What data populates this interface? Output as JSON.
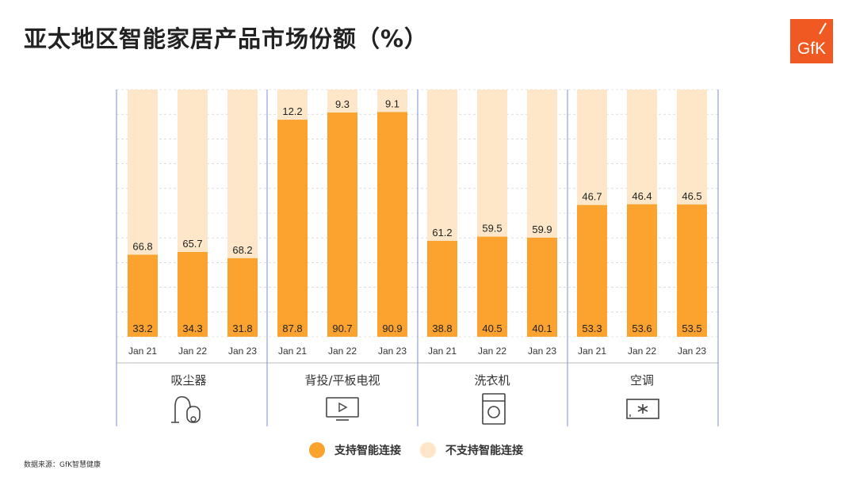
{
  "title": "亚太地区智能家居产品市场份额（%）",
  "logo_text": "GfK",
  "source": "数据来源：GfK智慧健康",
  "colors": {
    "supported": "#fba32e",
    "unsupported": "#fde7c8",
    "divider": "#7c8fd1",
    "gridline": "#c9c9c9"
  },
  "legend": [
    {
      "label": "支持智能连接",
      "color": "#fba32e"
    },
    {
      "label": "不支持智能连接",
      "color": "#fde7c8"
    }
  ],
  "groups": [
    {
      "name": "吸尘器",
      "icon": "vacuum-cleaner-icon"
    },
    {
      "name": "背投/平板电视",
      "icon": "tv-icon"
    },
    {
      "name": "洗衣机",
      "icon": "washing-machine-icon"
    },
    {
      "name": "空调",
      "icon": "air-conditioner-icon"
    }
  ],
  "chart_data": {
    "type": "bar",
    "stacked": true,
    "percent": true,
    "ylim": [
      0,
      100
    ],
    "grid": true,
    "legend_position": "bottom",
    "categories": [
      "Jan 21",
      "Jan 22",
      "Jan 23"
    ],
    "groups": [
      {
        "name": "吸尘器",
        "series": [
          {
            "name": "支持智能连接",
            "values": [
              33.2,
              34.3,
              31.8
            ]
          },
          {
            "name": "不支持智能连接",
            "values": [
              66.8,
              65.7,
              68.2
            ]
          }
        ]
      },
      {
        "name": "背投/平板电视",
        "series": [
          {
            "name": "支持智能连接",
            "values": [
              87.8,
              90.7,
              90.9
            ]
          },
          {
            "name": "不支持智能连接",
            "values": [
              12.2,
              9.3,
              9.1
            ]
          }
        ]
      },
      {
        "name": "洗衣机",
        "series": [
          {
            "name": "支持智能连接",
            "values": [
              38.8,
              40.5,
              40.1
            ]
          },
          {
            "name": "不支持智能连接",
            "values": [
              61.2,
              59.5,
              59.9
            ]
          }
        ]
      },
      {
        "name": "空调",
        "series": [
          {
            "name": "支持智能连接",
            "values": [
              53.3,
              53.6,
              53.5
            ]
          },
          {
            "name": "不支持智能连接",
            "values": [
              46.7,
              46.4,
              46.5
            ]
          }
        ]
      }
    ]
  }
}
